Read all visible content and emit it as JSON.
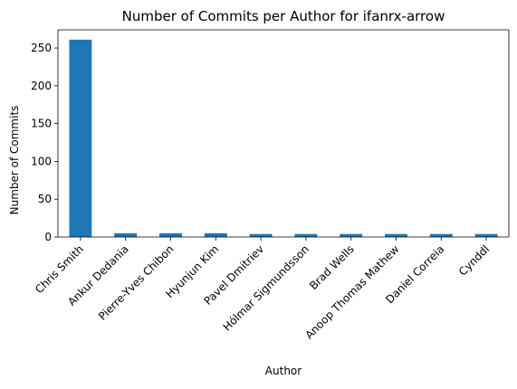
{
  "chart_data": {
    "type": "bar",
    "title": "Number of Commits per Author for ifanrx-arrow",
    "xlabel": "Author",
    "ylabel": "Number of Commits",
    "categories": [
      "Chris Smith",
      "Ankur Dedania",
      "Pierre-Yves Chibon",
      "Hyunjun Kim",
      "Pavel Dmitriev",
      "Hólmar Sigmundsson",
      "Brad Wells",
      "Anoop Thomas Mathew",
      "Daniel Correia",
      "Cynddl"
    ],
    "values": [
      261,
      5,
      5,
      5,
      4,
      4,
      4,
      4,
      4,
      4
    ],
    "ylim": [
      0,
      274
    ],
    "yticks": [
      0,
      50,
      100,
      150,
      200,
      250
    ],
    "bar_color": "#1f77b4",
    "grid": false,
    "legend": "none"
  }
}
